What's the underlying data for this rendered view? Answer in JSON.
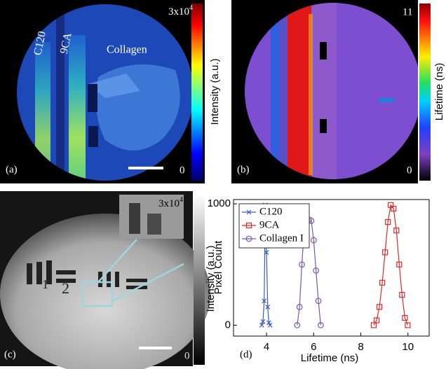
{
  "panel_a": {
    "label": "(a)",
    "annotations": [
      "C120",
      "9CA",
      "Collagen"
    ],
    "colorbar": {
      "max_base": "3x10",
      "max_exp": "4",
      "min": 0,
      "label": "Intensity (a.u.)"
    }
  },
  "panel_b": {
    "label": "(b)",
    "colorbar": {
      "max": 11,
      "min": 0,
      "label": "Lifetime (ns)"
    }
  },
  "panel_c": {
    "label": "(c)",
    "colorbar": {
      "max_base": "3x10",
      "max_exp": "4",
      "min": 0,
      "label": "Intensity (a.u.)"
    }
  },
  "chart_data": {
    "type": "line",
    "panel_label": "(d)",
    "xlabel": "Lifetime (ns)",
    "ylabel": "Pixel Count",
    "xlim": [
      2.6,
      10.9
    ],
    "ylim": [
      -90,
      1035
    ],
    "xticks": [
      4,
      6,
      8,
      10
    ],
    "yticks": [
      0,
      1000
    ],
    "legend": "upper left",
    "series": [
      {
        "name": "C120",
        "color": "#3a5cc0",
        "marker": "x",
        "x": [
          3.8,
          3.85,
          3.9,
          3.95,
          4.0,
          4.05,
          4.1,
          4.15
        ],
        "values": [
          0,
          30,
          200,
          990,
          600,
          150,
          20,
          0
        ]
      },
      {
        "name": "9CA",
        "color": "#e02828",
        "marker": "square",
        "x": [
          8.55,
          8.67,
          8.79,
          8.91,
          9.03,
          9.15,
          9.27,
          9.39,
          9.51,
          9.63,
          9.75,
          9.87,
          9.99
        ],
        "values": [
          0,
          40,
          150,
          350,
          600,
          850,
          990,
          960,
          780,
          500,
          250,
          60,
          0
        ]
      },
      {
        "name": "Collagen I",
        "color": "#7a55b0",
        "marker": "circle",
        "x": [
          5.3,
          5.4,
          5.5,
          5.6,
          5.7,
          5.8,
          5.9,
          6.0,
          6.1,
          6.2,
          6.3
        ],
        "values": [
          0,
          150,
          500,
          800,
          930,
          870,
          860,
          700,
          450,
          200,
          0
        ]
      }
    ]
  }
}
